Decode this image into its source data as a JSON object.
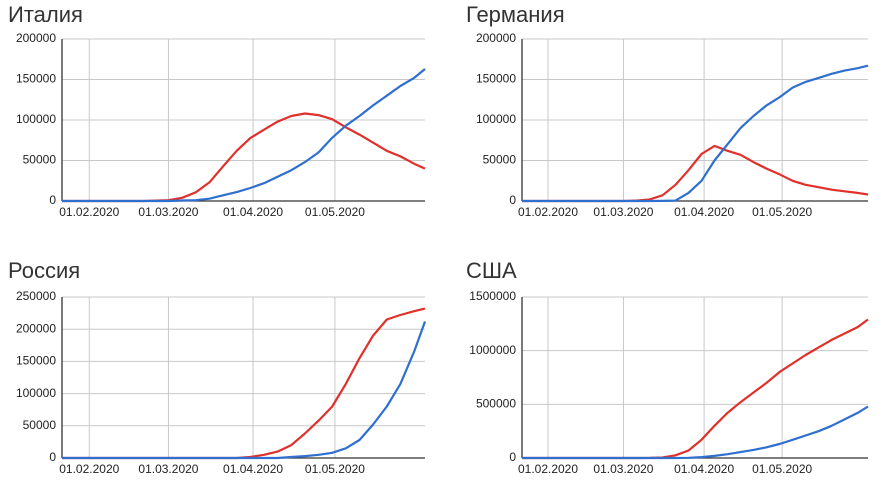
{
  "chart_data": [
    {
      "type": "line",
      "title": "Италия",
      "x": [
        "22.01.2020",
        "01.02.2020",
        "11.02.2020",
        "21.02.2020",
        "01.03.2020",
        "06.03.2020",
        "11.03.2020",
        "16.03.2020",
        "21.03.2020",
        "26.03.2020",
        "31.03.2020",
        "05.04.2020",
        "10.04.2020",
        "15.04.2020",
        "20.04.2020",
        "25.04.2020",
        "30.04.2020",
        "05.05.2020",
        "10.05.2020",
        "15.05.2020",
        "20.05.2020",
        "25.05.2020",
        "30.05.2020",
        "03.06.2020"
      ],
      "series": [
        {
          "color": "#e0302b",
          "values": [
            0,
            0,
            0,
            0,
            1000,
            3900,
            10600,
            23000,
            42700,
            62000,
            77600,
            88000,
            98000,
            105000,
            108000,
            106000,
            101000,
            91000,
            82000,
            72000,
            62000,
            55000,
            46000,
            40000
          ]
        },
        {
          "color": "#2f6fd0",
          "values": [
            0,
            0,
            0,
            0,
            0,
            600,
            1000,
            2900,
            7000,
            11000,
            16000,
            22000,
            30000,
            38000,
            48000,
            60000,
            78000,
            93000,
            105000,
            118000,
            130000,
            142000,
            152000,
            163000
          ]
        }
      ],
      "xlim": [
        "22.01.2020",
        "03.06.2020"
      ],
      "xticks": [
        "01.02.2020",
        "01.03.2020",
        "01.04.2020",
        "01.05.2020"
      ],
      "ylim": [
        0,
        200000
      ],
      "yticks": [
        0,
        50000,
        100000,
        150000,
        200000
      ],
      "grid": true
    },
    {
      "type": "line",
      "title": "Германия",
      "x": [
        "22.01.2020",
        "01.02.2020",
        "11.02.2020",
        "21.02.2020",
        "01.03.2020",
        "06.03.2020",
        "11.03.2020",
        "16.03.2020",
        "21.03.2020",
        "26.03.2020",
        "31.03.2020",
        "05.04.2020",
        "10.04.2020",
        "15.04.2020",
        "20.04.2020",
        "25.04.2020",
        "30.04.2020",
        "05.05.2020",
        "10.05.2020",
        "15.05.2020",
        "20.05.2020",
        "25.05.2020",
        "30.05.2020",
        "03.06.2020"
      ],
      "series": [
        {
          "color": "#e0302b",
          "values": [
            0,
            0,
            0,
            0,
            0,
            500,
            1800,
            7000,
            20000,
            38000,
            58000,
            68000,
            62000,
            57000,
            48000,
            40000,
            33000,
            25000,
            20000,
            17000,
            14000,
            12000,
            10000,
            8000
          ]
        },
        {
          "color": "#2f6fd0",
          "values": [
            0,
            0,
            0,
            0,
            0,
            0,
            0,
            100,
            500,
            10000,
            25000,
            50000,
            70000,
            90000,
            105000,
            118000,
            128000,
            140000,
            147000,
            152000,
            157000,
            161000,
            164000,
            167000
          ]
        }
      ],
      "xlim": [
        "22.01.2020",
        "03.06.2020"
      ],
      "xticks": [
        "01.02.2020",
        "01.03.2020",
        "01.04.2020",
        "01.05.2020"
      ],
      "ylim": [
        0,
        200000
      ],
      "yticks": [
        0,
        50000,
        100000,
        150000,
        200000
      ],
      "grid": true
    },
    {
      "type": "line",
      "title": "Россия",
      "x": [
        "22.01.2020",
        "01.02.2020",
        "11.02.2020",
        "21.02.2020",
        "01.03.2020",
        "06.03.2020",
        "11.03.2020",
        "16.03.2020",
        "21.03.2020",
        "26.03.2020",
        "31.03.2020",
        "05.04.2020",
        "10.04.2020",
        "15.04.2020",
        "20.04.2020",
        "25.04.2020",
        "30.04.2020",
        "05.05.2020",
        "10.05.2020",
        "15.05.2020",
        "20.05.2020",
        "25.05.2020",
        "30.05.2020",
        "03.06.2020"
      ],
      "series": [
        {
          "color": "#e0302b",
          "values": [
            0,
            0,
            0,
            0,
            0,
            0,
            0,
            0,
            0,
            0,
            1500,
            5000,
            10000,
            20000,
            38000,
            58000,
            80000,
            115000,
            155000,
            190000,
            215000,
            222000,
            228000,
            232000
          ]
        },
        {
          "color": "#2f6fd0",
          "values": [
            0,
            0,
            0,
            0,
            0,
            0,
            0,
            0,
            0,
            0,
            0,
            0,
            0,
            1500,
            3000,
            5000,
            8000,
            15000,
            28000,
            52000,
            80000,
            115000,
            165000,
            212000
          ]
        }
      ],
      "xlim": [
        "22.01.2020",
        "03.06.2020"
      ],
      "xticks": [
        "01.02.2020",
        "01.03.2020",
        "01.04.2020",
        "01.05.2020"
      ],
      "ylim": [
        0,
        250000
      ],
      "yticks": [
        0,
        50000,
        100000,
        150000,
        200000,
        250000
      ],
      "grid": true
    },
    {
      "type": "line",
      "title": "США",
      "x": [
        "22.01.2020",
        "01.02.2020",
        "11.02.2020",
        "21.02.2020",
        "01.03.2020",
        "06.03.2020",
        "11.03.2020",
        "16.03.2020",
        "21.03.2020",
        "26.03.2020",
        "31.03.2020",
        "05.04.2020",
        "10.04.2020",
        "15.04.2020",
        "20.04.2020",
        "25.04.2020",
        "30.04.2020",
        "05.05.2020",
        "10.05.2020",
        "15.05.2020",
        "20.05.2020",
        "25.05.2020",
        "30.05.2020",
        "03.06.2020"
      ],
      "series": [
        {
          "color": "#e0302b",
          "values": [
            0,
            0,
            0,
            0,
            0,
            0,
            1000,
            5000,
            25000,
            70000,
            170000,
            300000,
            420000,
            520000,
            610000,
            700000,
            800000,
            880000,
            960000,
            1030000,
            1100000,
            1160000,
            1220000,
            1290000
          ]
        },
        {
          "color": "#2f6fd0",
          "values": [
            0,
            0,
            0,
            0,
            0,
            0,
            0,
            0,
            0,
            2000,
            8000,
            20000,
            35000,
            55000,
            75000,
            100000,
            130000,
            170000,
            210000,
            250000,
            300000,
            360000,
            420000,
            480000
          ]
        }
      ],
      "xlim": [
        "22.01.2020",
        "03.06.2020"
      ],
      "xticks": [
        "01.02.2020",
        "01.03.2020",
        "01.04.2020",
        "01.05.2020"
      ],
      "ylim": [
        0,
        1500000
      ],
      "yticks": [
        0,
        500000,
        1000000,
        1500000
      ],
      "grid": true
    }
  ]
}
